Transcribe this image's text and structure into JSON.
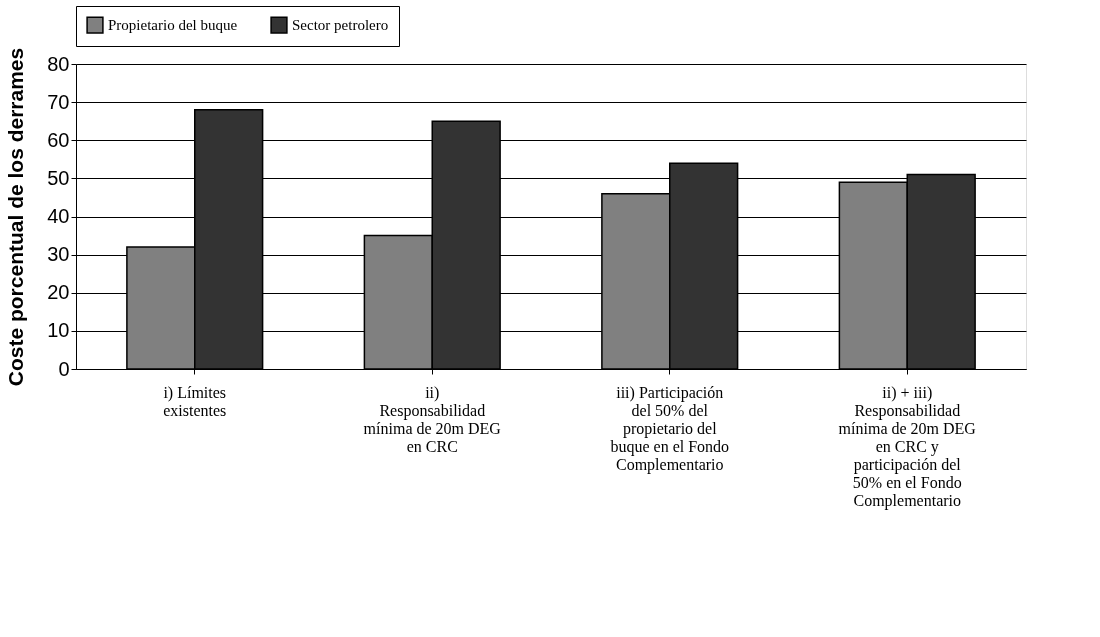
{
  "chart_data": {
    "type": "bar",
    "ylabel": "Coste porcentual de los derrames",
    "categories": [
      "i) Límites existentes",
      "ii) Responsabilidad mínima de 20m DEG en CRC",
      "iii) Participación del 50% del propietario del buque en el Fondo Complementario",
      "ii) + iii) Responsabilidad mínima de 20m DEG en CRC y participación del 50% en el Fondo Complementario"
    ],
    "series": [
      {
        "name": "Propietario del buque",
        "color": "#808080",
        "values": [
          32,
          35,
          46,
          49
        ]
      },
      {
        "name": "Sector petrolero",
        "color": "#333333",
        "values": [
          68,
          65,
          54,
          51
        ]
      }
    ],
    "ylim": [
      0,
      80
    ],
    "yticks": [
      0,
      10,
      20,
      30,
      40,
      50,
      60,
      70,
      80
    ],
    "grid": "y",
    "legend": "top"
  }
}
